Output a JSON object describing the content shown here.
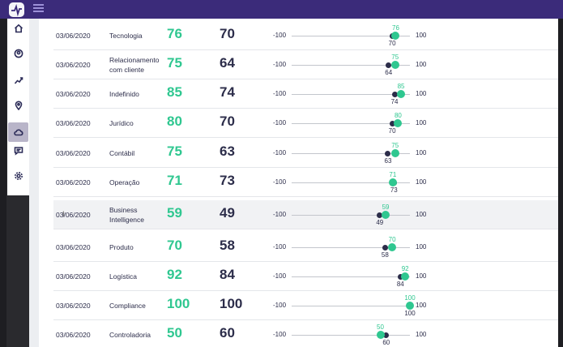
{
  "colors": {
    "accent_green": "#2fc790",
    "dark_navy": "#2c2d4a",
    "topbar": "#3b2b7a"
  },
  "topbar": {
    "logo_icon": "pulse-logo-icon",
    "menu_icon": "hamburger-icon"
  },
  "sidebar": {
    "items": [
      {
        "icon": "home-icon",
        "active": false
      },
      {
        "icon": "user-icon",
        "active": false
      },
      {
        "icon": "trend-icon",
        "active": false
      },
      {
        "icon": "location-pin-icon",
        "active": false
      },
      {
        "icon": "cloud-icon",
        "active": true
      },
      {
        "icon": "chat-icon",
        "active": false
      },
      {
        "icon": "gear-icon",
        "active": false
      }
    ]
  },
  "rows": [
    {
      "date": "03/06/2020",
      "category": "Tecnologia",
      "value_green": 76,
      "value_dark": 70,
      "min": "-100",
      "max": "100"
    },
    {
      "date": "03/06/2020",
      "category": "Relacionamento com cliente",
      "value_green": 75,
      "value_dark": 64,
      "min": "-100",
      "max": "100"
    },
    {
      "date": "03/06/2020",
      "category": "Indefinido",
      "value_green": 85,
      "value_dark": 74,
      "min": "-100",
      "max": "100"
    },
    {
      "date": "03/06/2020",
      "category": "Jurídico",
      "value_green": 80,
      "value_dark": 70,
      "min": "-100",
      "max": "100"
    },
    {
      "date": "03/06/2020",
      "category": "Contábil",
      "value_green": 75,
      "value_dark": 63,
      "min": "-100",
      "max": "100"
    },
    {
      "date": "03/06/2020",
      "category": "Operação",
      "value_green": 71,
      "value_dark": 73,
      "min": "-100",
      "max": "100"
    },
    {
      "date": "03/06/2020",
      "category": "Business Intelligence",
      "value_green": 59,
      "value_dark": 49,
      "min": "-100",
      "max": "100",
      "highlighted": true
    },
    {
      "date": "03/06/2020",
      "category": "Produto",
      "value_green": 70,
      "value_dark": 58,
      "min": "-100",
      "max": "100"
    },
    {
      "date": "03/06/2020",
      "category": "Logística",
      "value_green": 92,
      "value_dark": 84,
      "min": "-100",
      "max": "100"
    },
    {
      "date": "03/06/2020",
      "category": "Compliance",
      "value_green": 100,
      "value_dark": 100,
      "min": "-100",
      "max": "100"
    },
    {
      "date": "03/06/2020",
      "category": "Controladoria",
      "value_green": 50,
      "value_dark": 60,
      "min": "-100",
      "max": "100"
    }
  ]
}
